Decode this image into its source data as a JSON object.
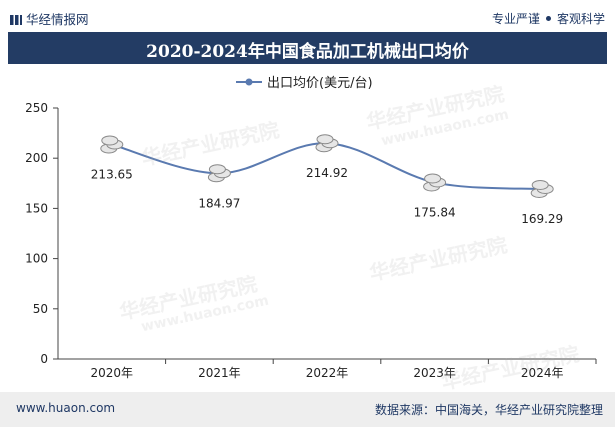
{
  "header": {
    "logo_text": "华经情报网",
    "slogan_left": "专业严谨",
    "slogan_right": "客观科学"
  },
  "title": "2020-2024年中国食品加工机械出口均价",
  "chart_data": {
    "type": "line",
    "categories": [
      "2020年",
      "2021年",
      "2022年",
      "2023年",
      "2024年"
    ],
    "series": [
      {
        "name": "出口均价(美元/台)",
        "values": [
          213.65,
          184.97,
          214.92,
          175.84,
          169.29
        ]
      }
    ],
    "data_labels": [
      "213.65",
      "184.97",
      "214.92",
      "175.84",
      "169.29"
    ],
    "yticks": [
      0,
      50,
      100,
      150,
      200,
      250
    ],
    "ylim": [
      0,
      250
    ],
    "legend": "出口均价(美元/台)",
    "legend_position": "top-center",
    "line_color": "#5a7ab0"
  },
  "watermarks": [
    "华经产业研究院",
    "www.huaon.com"
  ],
  "footer": {
    "website": "www.huaon.com",
    "source": "数据来源：中国海关，华经产业研究院整理"
  }
}
